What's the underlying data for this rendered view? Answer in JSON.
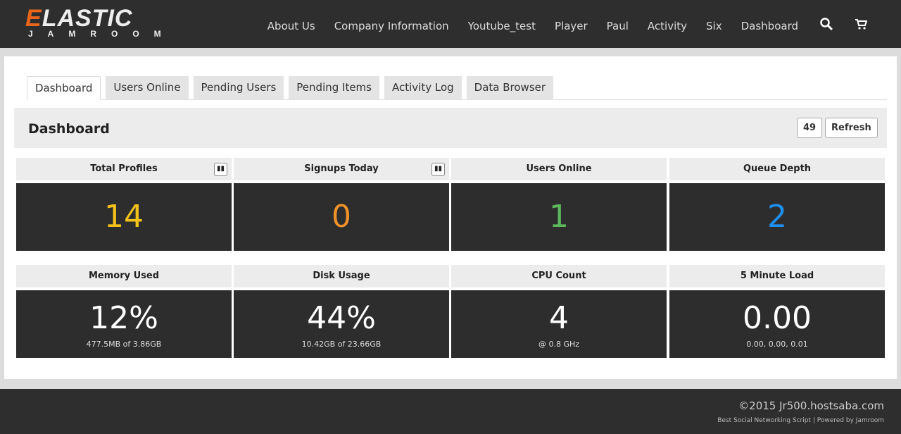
{
  "logo": {
    "first": "E",
    "rest": "LASTIC",
    "sub": "JAMROOM"
  },
  "nav": [
    "About Us",
    "Company Information",
    "Youtube_test",
    "Player",
    "Paul",
    "Activity",
    "Six",
    "Dashboard"
  ],
  "tabs": [
    "Dashboard",
    "Users Online",
    "Pending Users",
    "Pending Items",
    "Activity Log",
    "Data Browser"
  ],
  "page_title": "Dashboard",
  "counter": "49",
  "refresh_label": "Refresh",
  "colors": {
    "yellow": "#f2c21b",
    "orange": "#f0922a",
    "green": "#5cb85c",
    "blue": "#1e8ff0"
  },
  "cards": [
    {
      "label": "Total Profiles",
      "value": "14",
      "chart": true
    },
    {
      "label": "Signups Today",
      "value": "0",
      "chart": true
    },
    {
      "label": "Users Online",
      "value": "1"
    },
    {
      "label": "Queue Depth",
      "value": "2"
    },
    {
      "label": "Memory Used",
      "value": "12%",
      "sub": "477.5MB of 3.86GB"
    },
    {
      "label": "Disk Usage",
      "value": "44%",
      "sub": "10.42GB of 23.66GB"
    },
    {
      "label": "CPU Count",
      "value": "4",
      "sub": "@ 0.8 GHz"
    },
    {
      "label": "5 Minute Load",
      "value": "0.00",
      "sub": "0.00, 0.00, 0.01"
    }
  ],
  "footer": {
    "copyright": "©2015 Jr500.hostsaba.com",
    "tagline": "Best Social Networking Script | Powered by Jamroom"
  }
}
